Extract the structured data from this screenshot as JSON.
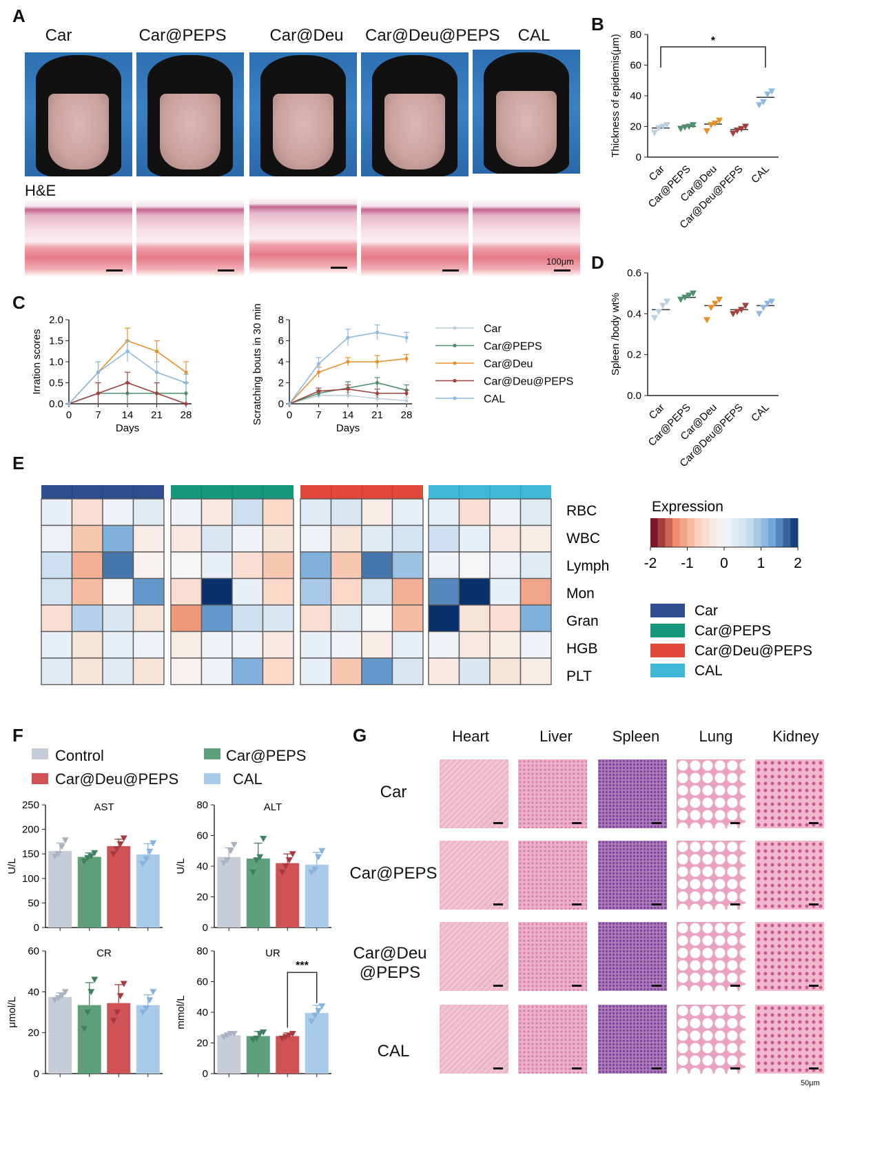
{
  "panels": {
    "A": "A",
    "B": "B",
    "C": "C",
    "D": "D",
    "E": "E",
    "F": "F",
    "G": "G"
  },
  "panelA": {
    "groups": [
      "Car",
      "Car@PEPS",
      "Car@Deu",
      "Car@Deu@PEPS",
      "CAL"
    ],
    "he_label": "H&E",
    "scale_label": "100μm"
  },
  "panelB_chart": {
    "ylabel": "Thickness of epidemis(μm)",
    "categories": [
      "Car",
      "Car@PEPS",
      "Car@Deu",
      "Car@Deu@PEPS",
      "CAL"
    ],
    "yticks": [
      "0",
      "20",
      "40",
      "60",
      "80"
    ],
    "sig": "*"
  },
  "panelC_chart1": {
    "ylabel": "Irration scores",
    "xlabel": "Days",
    "xticks": [
      "0",
      "7",
      "14",
      "21",
      "28"
    ],
    "yticks": [
      "0.0",
      "0.5",
      "1.0",
      "1.5",
      "2.0"
    ]
  },
  "panelC_chart2": {
    "ylabel": "Scratching  bouts in 30 mins",
    "xlabel": "Days",
    "xticks": [
      "0",
      "7",
      "14",
      "21",
      "28"
    ],
    "yticks": [
      "0",
      "2",
      "4",
      "6",
      "8"
    ]
  },
  "panelC_legend": [
    "Car",
    "Car@PEPS",
    "Car@Deu",
    "Car@Deu@PEPS",
    "CAL"
  ],
  "panelD_chart": {
    "ylabel": "Spleen /body wt%",
    "categories": [
      "Car",
      "Car@PEPS",
      "Car@Deu",
      "Car@Deu@PEPS",
      "CAL"
    ],
    "yticks": [
      "0.0",
      "0.2",
      "0.4",
      "0.6"
    ]
  },
  "panelE": {
    "rows": [
      "RBC",
      "WBC",
      "Lymph",
      "Mon",
      "Gran",
      "HGB",
      "PLT"
    ],
    "legend_title": "Expression",
    "scale_ticks": [
      "-2",
      "-1",
      "0",
      "1",
      "2"
    ],
    "groups": [
      "Car",
      "Car@PEPS",
      "Car@Deu@PEPS",
      "CAL"
    ]
  },
  "panelF": {
    "legend": [
      "Control",
      "Car@PEPS",
      "Car@Deu@PEPS",
      "CAL"
    ],
    "charts": {
      "AST": {
        "title": "AST",
        "ylabel": "U/L",
        "yticks": [
          "0",
          "50",
          "100",
          "150",
          "200",
          "250"
        ]
      },
      "ALT": {
        "title": "ALT",
        "ylabel": "U/L",
        "yticks": [
          "0",
          "20",
          "40",
          "60",
          "80"
        ]
      },
      "CR": {
        "title": "CR",
        "ylabel": "μmol/L",
        "yticks": [
          "0",
          "20",
          "40",
          "60"
        ]
      },
      "UR": {
        "title": "UR",
        "ylabel": "mmol/L",
        "yticks": [
          "0",
          "20",
          "40",
          "60",
          "80"
        ],
        "sig": "***"
      }
    }
  },
  "panelG": {
    "columns": [
      "Heart",
      "Liver",
      "Spleen",
      "Lung",
      "Kidney"
    ],
    "rows": [
      "Car",
      "Car@PEPS",
      "Car@Deu @PEPS",
      "CAL"
    ],
    "scale_label": "50μm"
  },
  "colors": {
    "car": "#b9cfe0",
    "car_peps": "#4f8f6e",
    "car_deu": "#e7902a",
    "car_deu_peps": "#a0413f",
    "cal": "#8fb9e0",
    "f_control": "#c6ccd8",
    "f_peps": "#5e9f7c",
    "f_deupeps": "#cf5356",
    "f_cal": "#a9cbe9",
    "e_car": "#2e4d8f",
    "e_peps": "#14977a",
    "e_deupeps": "#e0493a",
    "e_cal": "#3fb7d6"
  },
  "chart_data": [
    {
      "type": "scatter",
      "panel": "B",
      "ylabel": "Thickness of epidemis(μm)",
      "ylim": [
        0,
        80
      ],
      "categories": [
        "Car",
        "Car@PEPS",
        "Car@Deu",
        "Car@Deu@PEPS",
        "CAL"
      ],
      "means": [
        19,
        20,
        21.5,
        18,
        39
      ],
      "points": [
        [
          16,
          19,
          20,
          21
        ],
        [
          18.5,
          19.5,
          20,
          21
        ],
        [
          17,
          21,
          22,
          24
        ],
        [
          15.5,
          17.5,
          18.5,
          20
        ],
        [
          34,
          36,
          41,
          43
        ]
      ],
      "significance": "*"
    },
    {
      "type": "line",
      "panel": "C",
      "ylabel": "Irration scores",
      "xlabel": "Days",
      "ylim": [
        0,
        2.0
      ],
      "x": [
        0,
        7,
        14,
        21,
        28
      ],
      "series": [
        {
          "name": "Car",
          "values": [
            0,
            0.25,
            0.25,
            0.25,
            0.25
          ]
        },
        {
          "name": "Car@PEPS",
          "values": [
            0,
            0.25,
            0.25,
            0.25,
            0.25
          ]
        },
        {
          "name": "Car@Deu",
          "values": [
            0,
            0.75,
            1.5,
            1.25,
            0.75
          ]
        },
        {
          "name": "Car@Deu@PEPS",
          "values": [
            0,
            0.25,
            0.5,
            0.25,
            0
          ]
        },
        {
          "name": "CAL",
          "values": [
            0,
            0.75,
            1.25,
            0.75,
            0.5
          ]
        }
      ],
      "errors": [
        [
          0,
          0.25,
          0.25,
          0.25,
          0.25
        ],
        [
          0,
          0.25,
          0.25,
          0.25,
          0.25
        ],
        [
          0,
          0.25,
          0.3,
          0.25,
          0.25
        ],
        [
          0,
          0.25,
          0.25,
          0.25,
          0
        ],
        [
          0,
          0.25,
          0.25,
          0.25,
          0.2
        ]
      ]
    },
    {
      "type": "line",
      "panel": "C",
      "ylabel": "Scratching  bouts in 30 mins",
      "xlabel": "Days",
      "ylim": [
        0,
        8
      ],
      "x": [
        0,
        7,
        14,
        21,
        28
      ],
      "series": [
        {
          "name": "Car",
          "values": [
            0,
            0.8,
            0.8,
            0.5,
            0.3
          ]
        },
        {
          "name": "Car@PEPS",
          "values": [
            0,
            1,
            1.5,
            2,
            1.3
          ]
        },
        {
          "name": "Car@Deu",
          "values": [
            0,
            3,
            4,
            4,
            4.3
          ]
        },
        {
          "name": "Car@Deu@PEPS",
          "values": [
            0,
            1.2,
            1.4,
            1,
            1
          ]
        },
        {
          "name": "CAL",
          "values": [
            0,
            3.8,
            6.3,
            6.8,
            6.3
          ]
        }
      ],
      "errors": [
        [
          0,
          0.3,
          0.3,
          0.3,
          0.3
        ],
        [
          0,
          0.3,
          0.6,
          0.5,
          0.5
        ],
        [
          0,
          0.5,
          0.4,
          0.6,
          0.4
        ],
        [
          0,
          0.3,
          0.4,
          0.4,
          0.3
        ],
        [
          0,
          0.6,
          0.8,
          0.7,
          0.5
        ]
      ]
    },
    {
      "type": "scatter",
      "panel": "D",
      "ylabel": "Spleen /body wt%",
      "ylim": [
        0,
        0.6
      ],
      "categories": [
        "Car",
        "Car@PEPS",
        "Car@Deu",
        "Car@Deu@PEPS",
        "CAL"
      ],
      "means": [
        0.42,
        0.48,
        0.44,
        0.42,
        0.44
      ],
      "points": [
        [
          0.38,
          0.41,
          0.44,
          0.46
        ],
        [
          0.47,
          0.48,
          0.49,
          0.5
        ],
        [
          0.37,
          0.43,
          0.45,
          0.47
        ],
        [
          0.4,
          0.41,
          0.42,
          0.44
        ],
        [
          0.4,
          0.43,
          0.45,
          0.46
        ]
      ]
    },
    {
      "type": "heatmap",
      "panel": "E",
      "rows": [
        "RBC",
        "WBC",
        "Lymph",
        "Mon",
        "Gran",
        "HGB",
        "PLT"
      ],
      "groups": [
        "Car",
        "Car@PEPS",
        "Car@Deu@PEPS",
        "CAL"
      ],
      "values": [
        [
          [
            0.2,
            -0.5,
            0.1,
            0.3
          ],
          [
            0.1,
            -0.3,
            0.6,
            -0.6
          ],
          [
            0.3,
            0.4,
            -0.2,
            0.2
          ],
          [
            0.2,
            -0.5,
            0.1,
            0.3
          ]
        ],
        [
          [
            0.1,
            -0.8,
            1.2,
            -0.2
          ],
          [
            -0.3,
            0.4,
            0.1,
            -0.4
          ],
          [
            0.1,
            -0.4,
            0.3,
            0.5
          ],
          [
            0.6,
            0.2,
            -0.3,
            -0.2
          ]
        ],
        [
          [
            0.6,
            -1.0,
            1.6,
            -0.1
          ],
          [
            0,
            0.2,
            -0.5,
            -0.8
          ],
          [
            1.2,
            -0.8,
            1.6,
            1.0
          ],
          [
            0.1,
            0,
            0.1,
            0.3
          ]
        ],
        [
          [
            0.5,
            -0.9,
            0,
            1.4
          ],
          [
            -0.5,
            2.0,
            0.2,
            -0.6
          ],
          [
            0.9,
            -0.6,
            0.5,
            -1.0
          ],
          [
            1.5,
            2.2,
            0.2,
            -1.1
          ]
        ],
        [
          [
            -0.5,
            0.8,
            0.4,
            -0.4
          ],
          [
            -1.2,
            1.4,
            0.6,
            0.4
          ],
          [
            -0.5,
            0.3,
            0,
            -0.9
          ],
          [
            2.2,
            -0.4,
            -0.5,
            1.2
          ]
        ],
        [
          [
            0.2,
            -0.4,
            0.2,
            0.1
          ],
          [
            -0.2,
            0.1,
            0.1,
            -0.3
          ],
          [
            0.2,
            0.1,
            -0.2,
            0.2
          ],
          [
            0.1,
            -0.3,
            -0.2,
            0.1
          ]
        ],
        [
          [
            0.3,
            -0.4,
            0.3,
            -0.4
          ],
          [
            -0.1,
            0.1,
            1.2,
            -0.6
          ],
          [
            0.2,
            -0.8,
            1.4,
            0.4
          ],
          [
            -0.3,
            0.4,
            -0.4,
            -0.2
          ]
        ]
      ],
      "legend_title": "Expression",
      "range": [
        -2,
        2
      ]
    },
    {
      "type": "bar",
      "panel": "F",
      "title": "AST",
      "ylabel": "U/L",
      "ylim": [
        0,
        250
      ],
      "categories": [
        "Control",
        "Car@PEPS",
        "Car@Deu@PEPS",
        "CAL"
      ],
      "values": [
        156,
        144,
        166,
        149
      ],
      "errors": [
        16,
        8,
        14,
        22
      ],
      "points": [
        [
          145,
          150,
          165,
          178
        ],
        [
          135,
          142,
          145,
          152
        ],
        [
          150,
          160,
          170,
          182
        ],
        [
          130,
          140,
          155,
          172
        ]
      ]
    },
    {
      "type": "bar",
      "panel": "F",
      "title": "ALT",
      "ylabel": "U/L",
      "ylim": [
        0,
        80
      ],
      "categories": [
        "Control",
        "Car@PEPS",
        "Car@Deu@PEPS",
        "CAL"
      ],
      "values": [
        46,
        45,
        42,
        41
      ],
      "errors": [
        6,
        10,
        6,
        8
      ],
      "points": [
        [
          42,
          44,
          50,
          54
        ],
        [
          36,
          44,
          46,
          58
        ],
        [
          36,
          40,
          44,
          48
        ],
        [
          36,
          38,
          46,
          50
        ]
      ]
    },
    {
      "type": "bar",
      "panel": "F",
      "title": "CR",
      "ylabel": "μmol/L",
      "ylim": [
        0,
        60
      ],
      "categories": [
        "Control",
        "Car@PEPS",
        "Car@Deu@PEPS",
        "CAL"
      ],
      "values": [
        37.5,
        33.5,
        34.5,
        33.5
      ],
      "errors": [
        2,
        11,
        9,
        5
      ],
      "points": [
        [
          36,
          37,
          38,
          40
        ],
        [
          22,
          30,
          40,
          46
        ],
        [
          26,
          30,
          38,
          44
        ],
        [
          30,
          32,
          36,
          40
        ]
      ]
    },
    {
      "type": "bar",
      "panel": "F",
      "title": "UR",
      "ylabel": "mmol/L",
      "ylim": [
        0,
        80
      ],
      "categories": [
        "Control",
        "Car@PEPS",
        "Car@Deu@PEPS",
        "CAL"
      ],
      "values": [
        25,
        24.5,
        24.5,
        39.5
      ],
      "errors": [
        1.5,
        3,
        2,
        5
      ],
      "points": [
        [
          24,
          25,
          26,
          26
        ],
        [
          22,
          23,
          26,
          27
        ],
        [
          23,
          24,
          25,
          26
        ],
        [
          34,
          38,
          41,
          44
        ]
      ],
      "significance": "***"
    }
  ]
}
